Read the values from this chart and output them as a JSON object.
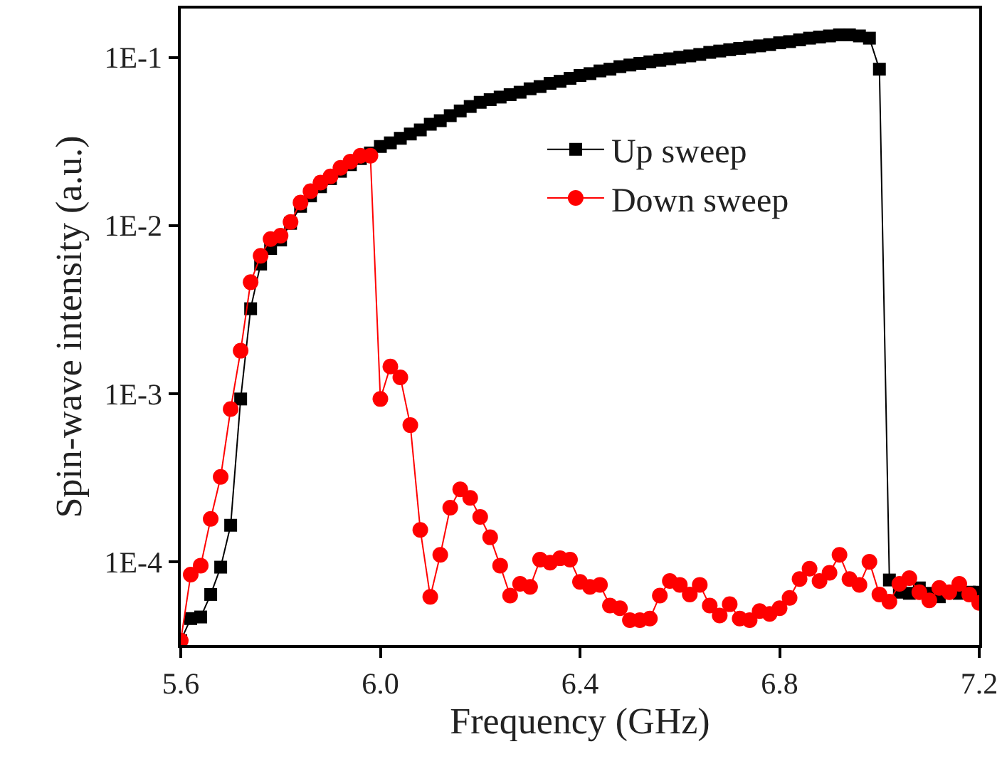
{
  "chart_data": {
    "type": "line",
    "xlabel": "Frequency (GHz)",
    "ylabel": "Spin-wave intensity (a.u.)",
    "log": "y",
    "xlim": [
      5.6,
      7.2
    ],
    "xticks": [
      5.6,
      {
        "value": 6.0,
        "label": "6.0"
      },
      6.4,
      6.8,
      7.2
    ],
    "ylim": [
      3.2e-05,
      0.195
    ],
    "yticks": [
      {
        "value": 0.0001,
        "label": "1E-4"
      },
      {
        "value": 0.001,
        "label": "1E-3"
      },
      {
        "value": 0.01,
        "label": "1E-2"
      },
      {
        "value": 0.1,
        "label": "1E-1"
      }
    ],
    "grid": false,
    "legend": "center",
    "x": [
      5.6,
      5.62,
      5.64,
      5.66,
      5.68,
      5.7,
      5.72,
      5.74,
      5.76,
      5.78,
      5.8,
      5.82,
      5.84,
      5.86,
      5.88,
      5.9,
      5.92,
      5.94,
      5.96,
      5.98,
      6.0,
      6.02,
      6.04,
      6.06,
      6.08,
      6.1,
      6.12,
      6.14,
      6.16,
      6.18,
      6.2,
      6.22,
      6.24,
      6.26,
      6.28,
      6.3,
      6.32,
      6.34,
      6.36,
      6.38,
      6.4,
      6.42,
      6.44,
      6.46,
      6.48,
      6.5,
      6.52,
      6.54,
      6.56,
      6.58,
      6.6,
      6.62,
      6.64,
      6.66,
      6.68,
      6.7,
      6.72,
      6.74,
      6.76,
      6.78,
      6.8,
      6.82,
      6.84,
      6.86,
      6.88,
      6.9,
      6.92,
      6.94,
      6.96,
      6.98,
      7.0,
      7.02,
      7.04,
      7.06,
      7.08,
      7.1,
      7.12,
      7.14,
      7.16,
      7.18,
      7.2
    ],
    "series": [
      {
        "name": "Up sweep",
        "color": "#000000",
        "marker": "square",
        "values": [
          3.4e-05,
          4.6e-05,
          4.7e-05,
          6.4e-05,
          9.3e-05,
          0.000165,
          0.00093,
          0.0032,
          0.0059,
          0.0073,
          0.0082,
          0.0103,
          0.013,
          0.015,
          0.017,
          0.019,
          0.021,
          0.023,
          0.025,
          0.027,
          0.0295,
          0.031,
          0.033,
          0.035,
          0.037,
          0.04,
          0.042,
          0.045,
          0.048,
          0.051,
          0.054,
          0.056,
          0.058,
          0.06,
          0.062,
          0.065,
          0.067,
          0.07,
          0.072,
          0.075,
          0.078,
          0.08,
          0.083,
          0.085,
          0.088,
          0.09,
          0.092,
          0.094,
          0.096,
          0.098,
          0.1,
          0.102,
          0.104,
          0.107,
          0.109,
          0.111,
          0.113,
          0.115,
          0.117,
          0.119,
          0.122,
          0.124,
          0.127,
          0.13,
          0.132,
          0.134,
          0.136,
          0.136,
          0.134,
          0.13,
          0.085,
          7.8e-05,
          6.6e-05,
          6.5e-05,
          7e-05,
          6.5e-05,
          6.2e-05,
          null,
          6.5e-05,
          6.6e-05,
          6.6e-05
        ]
      },
      {
        "name": "Down sweep",
        "color": "#ff0000",
        "marker": "circle",
        "values": [
          3.4e-05,
          8.4e-05,
          9.5e-05,
          0.00018,
          0.00032,
          0.00081,
          0.0018,
          0.0046,
          0.0066,
          0.0083,
          0.0087,
          0.0105,
          0.0137,
          0.016,
          0.018,
          0.0196,
          0.022,
          0.024,
          0.026,
          0.026,
          0.00093,
          0.00145,
          0.00125,
          0.00065,
          0.000155,
          6.2e-05,
          0.00011,
          0.00021,
          0.00027,
          0.00024,
          0.000185,
          0.00014,
          9.5e-05,
          6.3e-05,
          7.4e-05,
          7.1e-05,
          0.000103,
          9.9e-05,
          0.000105,
          0.000103,
          7.6e-05,
          7.1e-05,
          7.3e-05,
          5.5e-05,
          5.3e-05,
          4.5e-05,
          4.5e-05,
          4.6e-05,
          6.3e-05,
          7.7e-05,
          7.3e-05,
          6.4e-05,
          7.3e-05,
          5.5e-05,
          4.8e-05,
          5.6e-05,
          4.6e-05,
          4.5e-05,
          5.1e-05,
          4.9e-05,
          5.3e-05,
          6.1e-05,
          7.9e-05,
          9.1e-05,
          7.7e-05,
          8.6e-05,
          0.00011,
          7.9e-05,
          7.3e-05,
          0.0001,
          6.4e-05,
          5.8e-05,
          7.4e-05,
          8e-05,
          6.6e-05,
          5.9e-05,
          7e-05,
          6.6e-05,
          7.4e-05,
          6.4e-05,
          5.7e-05
        ]
      }
    ]
  }
}
